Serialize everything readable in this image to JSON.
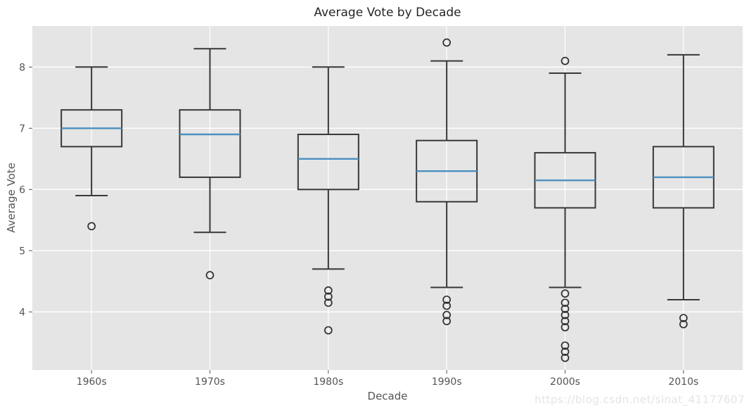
{
  "chart_data": {
    "type": "boxplot",
    "title": "Average Vote by Decade",
    "xlabel": "Decade",
    "ylabel": "Average Vote",
    "categories": [
      "1960s",
      "1970s",
      "1980s",
      "1990s",
      "2000s",
      "2010s"
    ],
    "y_ticks": [
      4,
      5,
      6,
      7,
      8
    ],
    "ylim": [
      3.05,
      8.67
    ],
    "grid": true,
    "legend": "none",
    "series": [
      {
        "category": "1960s",
        "whisker_low": 5.9,
        "q1": 6.7,
        "median": 7.0,
        "q3": 7.3,
        "whisker_high": 8.0,
        "outliers": [
          5.4
        ]
      },
      {
        "category": "1970s",
        "whisker_low": 5.3,
        "q1": 6.2,
        "median": 6.9,
        "q3": 7.3,
        "whisker_high": 8.3,
        "outliers": [
          4.6
        ]
      },
      {
        "category": "1980s",
        "whisker_low": 4.7,
        "q1": 6.0,
        "median": 6.5,
        "q3": 6.9,
        "whisker_high": 8.0,
        "outliers": [
          4.35,
          4.25,
          4.15,
          3.7
        ]
      },
      {
        "category": "1990s",
        "whisker_low": 4.4,
        "q1": 5.8,
        "median": 6.3,
        "q3": 6.8,
        "whisker_high": 8.1,
        "outliers": [
          8.4,
          4.2,
          4.1,
          3.95,
          3.85
        ]
      },
      {
        "category": "2000s",
        "whisker_low": 4.4,
        "q1": 5.7,
        "median": 6.15,
        "q3": 6.6,
        "whisker_high": 7.9,
        "outliers": [
          8.1,
          4.3,
          4.15,
          4.05,
          3.95,
          3.85,
          3.75,
          3.45,
          3.35,
          3.25
        ]
      },
      {
        "category": "2010s",
        "whisker_low": 4.2,
        "q1": 5.7,
        "median": 6.2,
        "q3": 6.7,
        "whisker_high": 8.2,
        "outliers": [
          3.9,
          3.8
        ]
      }
    ],
    "colors": {
      "plot_bg": "#e5e5e5",
      "grid": "#ffffff",
      "box_edge": "#383838",
      "median": "#4c8fbf",
      "tick_label": "#555555",
      "title": "#262626",
      "outlier_edge": "#2e2e2e"
    },
    "watermark": "https://blog.csdn.net/sinat_41177607"
  }
}
